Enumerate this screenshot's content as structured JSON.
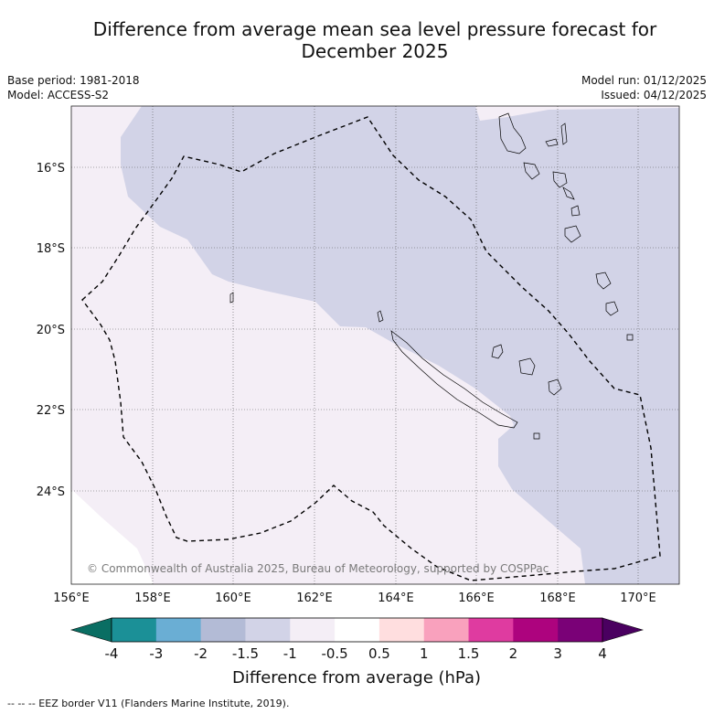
{
  "header": {
    "title_line1": "Difference from average mean sea level pressure forecast for",
    "title_line2": "December 2025",
    "base_period": "Base period: 1981-2018",
    "model": "Model: ACCESS-S2",
    "model_run": "Model run: 01/12/2025",
    "issued": "Issued: 04/12/2025"
  },
  "map": {
    "lon_labels": [
      "156°E",
      "158°E",
      "160°E",
      "162°E",
      "164°E",
      "166°E",
      "168°E",
      "170°E"
    ],
    "lat_labels": [
      "16°S",
      "18°S",
      "20°S",
      "22°S",
      "24°S"
    ],
    "copyright": "© Commonwealth of Australia 2025, Bureau of Meteorology, supported by COSPPac",
    "colors": {
      "band_neg1_5_neg1": "#d2d3e7",
      "band_neg1_neg0_5": "#f4eef6",
      "land_outline": "#000000"
    }
  },
  "colorbar": {
    "ticks": [
      "-4",
      "-3",
      "-2",
      "-1.5",
      "-1",
      "-0.5",
      "0.5",
      "1",
      "1.5",
      "2",
      "3",
      "4"
    ],
    "colors": [
      "#1b9097",
      "#6aaed4",
      "#b3bbd6",
      "#d2d3e7",
      "#f4eef6",
      "#ffffff",
      "#ffdedf",
      "#f9a1bd",
      "#df3ba0",
      "#ad037e",
      "#7a0177"
    ],
    "min_color": "#0a6e63",
    "max_color": "#4a0060",
    "label": "Difference from average (hPa)"
  },
  "footer": {
    "eez_note": "--  --  -- EEZ border V11 (Flanders Marine Institute, 2019)."
  }
}
